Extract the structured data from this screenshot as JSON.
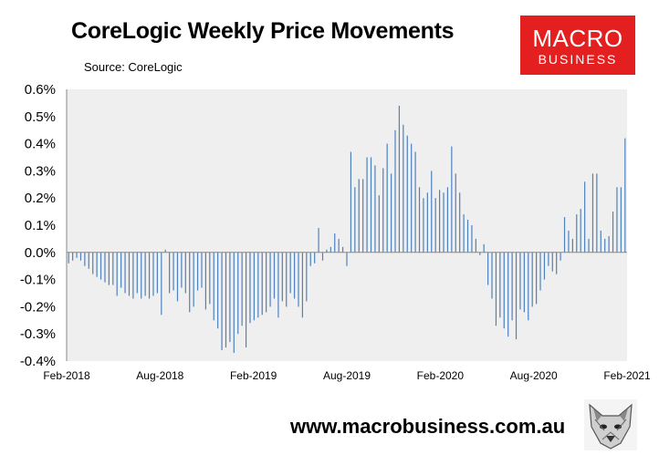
{
  "header": {
    "title": "CoreLogic Weekly Price Movements",
    "source": "Source: CoreLogic"
  },
  "logo": {
    "line1": "MACRO",
    "line2": "BUSINESS",
    "color": "#e41f1f"
  },
  "footer": {
    "url": "www.macrobusiness.com.au",
    "fox_icon": "fox-head-icon"
  },
  "colors": {
    "plot_bg": "#efefef",
    "bar": "#4f81bd"
  },
  "chart_data": {
    "type": "bar",
    "title": "CoreLogic Weekly Price Movements",
    "subtitle": "Source: CoreLogic",
    "xlabel": "",
    "ylabel": "",
    "ylim": [
      -0.4,
      0.6
    ],
    "y_ticks": [
      "0.6%",
      "0.5%",
      "0.4%",
      "0.3%",
      "0.2%",
      "0.1%",
      "0.0%",
      "-0.1%",
      "-0.2%",
      "-0.3%",
      "-0.4%"
    ],
    "x_ticks": [
      "Feb-2018",
      "Aug-2018",
      "Feb-2019",
      "Aug-2019",
      "Feb-2020",
      "Aug-2020",
      "Feb-2021"
    ],
    "x_range": [
      "2018-02-01",
      "2021-02-01"
    ],
    "grid": false,
    "legend": false,
    "series": [
      {
        "values": [
          -0.04,
          -0.03,
          -0.02,
          -0.03,
          -0.05,
          -0.06,
          -0.08,
          -0.09,
          -0.1,
          -0.11,
          -0.12,
          -0.12,
          -0.16,
          -0.13,
          -0.15,
          -0.16,
          -0.17,
          -0.15,
          -0.17,
          -0.16,
          -0.17,
          -0.16,
          -0.15,
          -0.23,
          0.01,
          -0.15,
          -0.14,
          -0.18,
          -0.13,
          -0.15,
          -0.22,
          -0.2,
          -0.14,
          -0.13,
          -0.21,
          -0.19,
          -0.25,
          -0.28,
          -0.36,
          -0.35,
          -0.33,
          -0.37,
          -0.3,
          -0.27,
          -0.35,
          -0.26,
          -0.25,
          -0.24,
          -0.23,
          -0.22,
          -0.2,
          -0.17,
          -0.24,
          -0.18,
          -0.2,
          -0.15,
          -0.17,
          -0.2,
          -0.24,
          -0.18,
          -0.05,
          -0.04,
          0.09,
          -0.03,
          0.01,
          0.02,
          0.07,
          0.05,
          0.02,
          -0.05,
          0.37,
          0.24,
          0.27,
          0.27,
          0.35,
          0.35,
          0.32,
          0.21,
          0.31,
          0.4,
          0.29,
          0.45,
          0.54,
          0.47,
          0.43,
          0.4,
          0.37,
          0.24,
          0.2,
          0.22,
          0.3,
          0.2,
          0.23,
          0.22,
          0.24,
          0.39,
          0.29,
          0.22,
          0.14,
          0.12,
          0.1,
          0.05,
          -0.01,
          0.03,
          -0.12,
          -0.17,
          -0.27,
          -0.24,
          -0.28,
          -0.31,
          -0.25,
          -0.32,
          -0.21,
          -0.22,
          -0.25,
          -0.2,
          -0.19,
          -0.14,
          -0.1,
          -0.05,
          -0.07,
          -0.08,
          -0.03,
          0.13,
          0.08,
          0.05,
          0.14,
          0.16,
          0.26,
          0.05,
          0.29,
          0.29,
          0.08,
          0.05,
          0.06,
          0.15,
          0.24,
          0.24,
          0.42
        ]
      }
    ]
  }
}
